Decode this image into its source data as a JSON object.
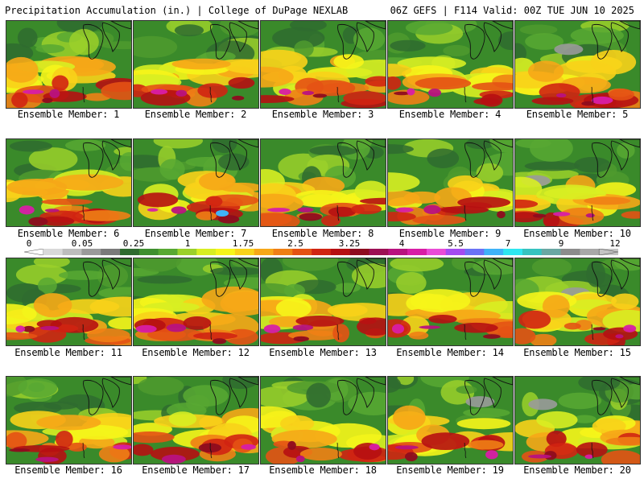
{
  "header": {
    "title": "Precipitation Accumulation (in.) | College of DuPage NEXLAB",
    "run_info": "06Z GEFS | F114 Valid: 00Z TUE JUN 10 2025"
  },
  "members": [
    "Ensemble Member: 1",
    "Ensemble Member: 2",
    "Ensemble Member: 3",
    "Ensemble Member: 4",
    "Ensemble Member: 5",
    "Ensemble Member: 6",
    "Ensemble Member: 7",
    "Ensemble Member: 8",
    "Ensemble Member: 9",
    "Ensemble Member: 10",
    "Ensemble Member: 11",
    "Ensemble Member: 12",
    "Ensemble Member: 13",
    "Ensemble Member: 14",
    "Ensemble Member: 15",
    "Ensemble Member: 16",
    "Ensemble Member: 17",
    "Ensemble Member: 18",
    "Ensemble Member: 19",
    "Ensemble Member: 20"
  ],
  "colorbar": {
    "labels": [
      "0",
      "0.05",
      "0.25",
      "1",
      "1.75",
      "2.5",
      "3.25",
      "4",
      "5.5",
      "7",
      "9",
      "12"
    ],
    "colors": [
      "#d9d9d9",
      "#bdbdbd",
      "#9a9a9a",
      "#7a7a7a",
      "#2f6b2f",
      "#3f8f2f",
      "#58a832",
      "#9bd02a",
      "#d8ee22",
      "#f6f51a",
      "#f8d21a",
      "#f6a717",
      "#ef7f15",
      "#e45214",
      "#d02412",
      "#b60f12",
      "#8e0c1f",
      "#9c0f54",
      "#b8127f",
      "#d81da6",
      "#e94bd6",
      "#a44bf0",
      "#6b72f5",
      "#3fb2f8",
      "#2ee6f0",
      "#36c3c0",
      "#6aa7a3",
      "#8c8c8c",
      "#a8a8a8",
      "#c4c4c4"
    ]
  }
}
